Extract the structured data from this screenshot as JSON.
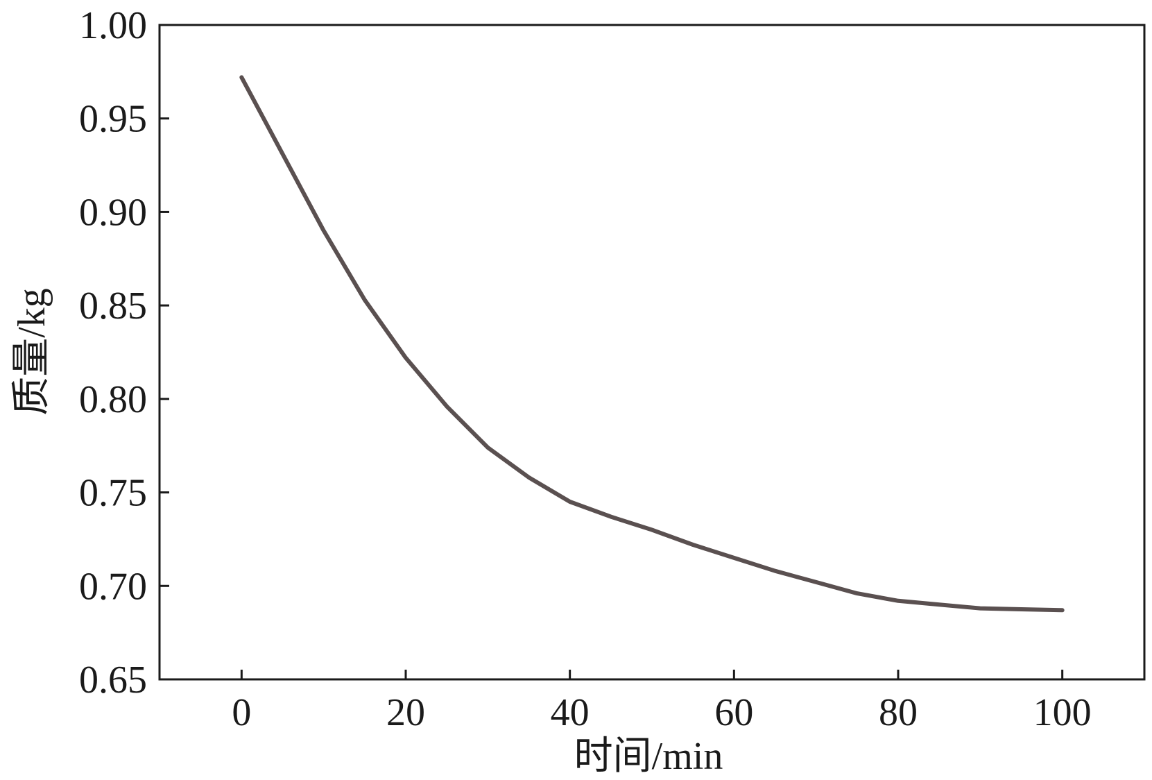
{
  "chart_data": {
    "type": "line",
    "xlabel": "时间/min",
    "ylabel": "质量/kg",
    "xlim": [
      -10,
      110
    ],
    "ylim": [
      0.65,
      1.0
    ],
    "x_ticks": [
      0,
      20,
      40,
      60,
      80,
      100
    ],
    "x_tick_labels": [
      "0",
      "20",
      "40",
      "60",
      "80",
      "100"
    ],
    "y_ticks": [
      0.65,
      0.7,
      0.75,
      0.8,
      0.85,
      0.9,
      0.95,
      1.0
    ],
    "y_tick_labels": [
      "0.65",
      "0.70",
      "0.75",
      "0.80",
      "0.85",
      "0.90",
      "0.95",
      "1.00"
    ],
    "grid": false,
    "legend": "none",
    "line_color": "#5a5050",
    "series": [
      {
        "x": [
          0,
          5,
          10,
          15,
          20,
          25,
          30,
          35,
          40,
          45,
          50,
          55,
          60,
          65,
          70,
          75,
          80,
          85,
          90,
          95,
          100
        ],
        "y": [
          0.972,
          0.931,
          0.89,
          0.853,
          0.822,
          0.796,
          0.774,
          0.758,
          0.745,
          0.737,
          0.73,
          0.722,
          0.715,
          0.708,
          0.702,
          0.696,
          0.692,
          0.69,
          0.688,
          0.6875,
          0.687
        ]
      }
    ]
  }
}
